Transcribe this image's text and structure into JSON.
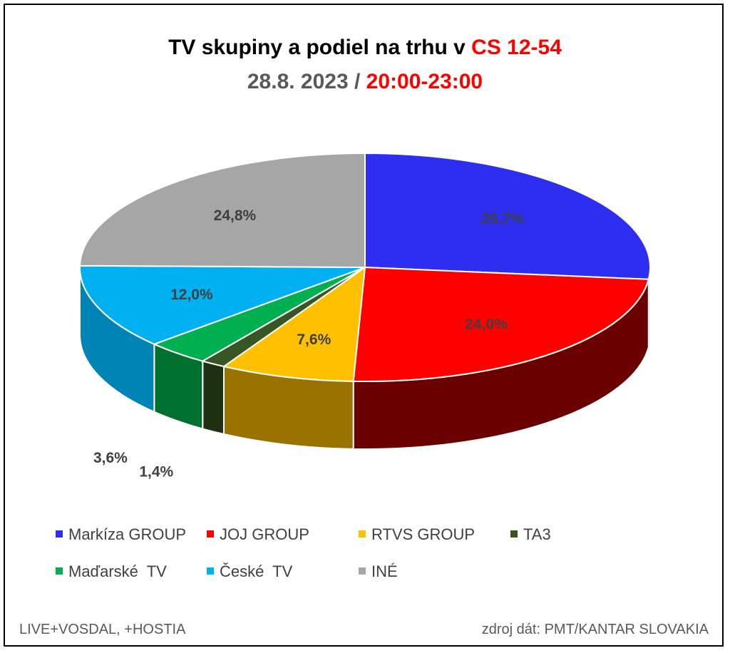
{
  "title": {
    "line1_prefix": "TV skupiny a podiel na trhu v ",
    "line1_highlight": "CS 12-54",
    "line2_date": "28.8. 2023",
    "line2_sep": " / ",
    "line2_time": "20:00-23:00"
  },
  "chart_data": {
    "type": "pie",
    "style": "3d",
    "legend_position": "bottom",
    "slices": [
      {
        "label": "Markíza GROUP",
        "value": 26.7,
        "display": "26,7%",
        "color": "#2e2ef0",
        "side_color": "#17177a"
      },
      {
        "label": "JOJ GROUP",
        "value": 24.0,
        "display": "24,0%",
        "color": "#ff0000",
        "side_color": "#6a0000"
      },
      {
        "label": "RTVS GROUP",
        "value": 7.6,
        "display": "7,6%",
        "color": "#ffc000",
        "side_color": "#9a7200"
      },
      {
        "label": "TA3",
        "value": 1.4,
        "display": "1,4%",
        "color": "#375623",
        "side_color": "#1d3012"
      },
      {
        "label": "Maďarské  TV",
        "value": 3.6,
        "display": "3,6%",
        "color": "#00b050",
        "side_color": "#00702f"
      },
      {
        "label": "České  TV",
        "value": 12.0,
        "display": "12,0%",
        "color": "#00b0f0",
        "side_color": "#0083b5"
      },
      {
        "label": "INÉ",
        "value": 24.8,
        "display": "24,8%",
        "color": "#a6a6a6",
        "side_color": "#6f6f6f"
      }
    ]
  },
  "footer": {
    "left": "LIVE+VOSDAL, +HOSTIA",
    "right": "zdroj dát: PMT/KANTAR SLOVAKIA"
  }
}
